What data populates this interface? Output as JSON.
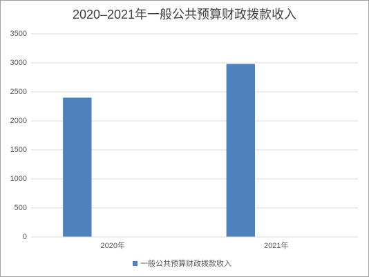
{
  "chart_data": {
    "type": "bar",
    "title": "2020–2021年一般公共预算财政拨款收入",
    "categories": [
      "2020年",
      "2021年"
    ],
    "series": [
      {
        "name": "一般公共预算财政拨款收入",
        "color": "#4f81bd",
        "values": [
          2400,
          2980
        ]
      }
    ],
    "ylim": [
      0,
      3500
    ],
    "yticks": [
      0,
      500,
      1000,
      1500,
      2000,
      2500,
      3000,
      3500
    ],
    "grid": true,
    "legend": "bottom"
  }
}
